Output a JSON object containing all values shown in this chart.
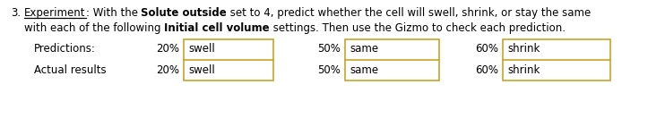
{
  "number": "3.",
  "segs_line1": [
    {
      "text": "Experiment",
      "bold": false,
      "underline": true
    },
    {
      "text": ": With the ",
      "bold": false,
      "underline": false
    },
    {
      "text": "Solute outside",
      "bold": true,
      "underline": false
    },
    {
      "text": " set to 4, predict whether the cell will swell, shrink, or stay the same",
      "bold": false,
      "underline": false
    }
  ],
  "segs_line2": [
    {
      "text": "with each of the following ",
      "bold": false,
      "underline": false
    },
    {
      "text": "Initial cell volume",
      "bold": true,
      "underline": false
    },
    {
      "text": " settings. Then use the Gizmo to check each prediction.",
      "bold": false,
      "underline": false
    }
  ],
  "row_labels": [
    "Predictions:",
    "Actual results"
  ],
  "columns": [
    {
      "pct": "20%",
      "pred": "swell",
      "actual": "swell"
    },
    {
      "pct": "50%",
      "pred": "same",
      "actual": "same"
    },
    {
      "pct": "60%",
      "pred": "shrink",
      "actual": "shrink"
    }
  ],
  "box_color": "#c8a428",
  "text_color": "#000000",
  "bg_color": "#ffffff",
  "font_size": 8.5,
  "fig_width": 7.42,
  "fig_height": 1.42,
  "dpi": 100
}
